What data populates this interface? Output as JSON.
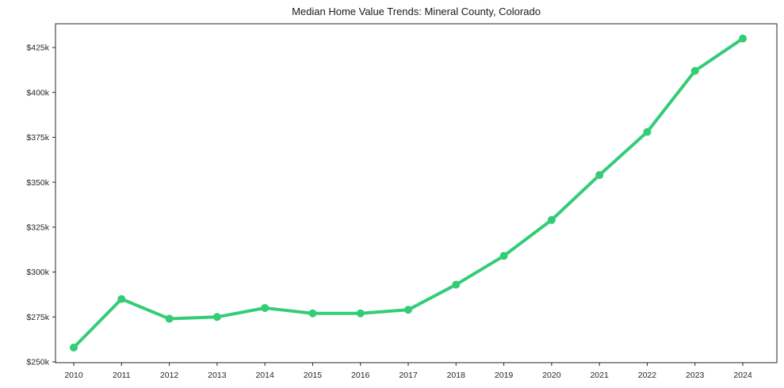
{
  "chart_data": {
    "type": "line",
    "title": "Median Home Value Trends: Mineral County, Colorado",
    "xlabel": "",
    "ylabel": "",
    "x": [
      2010,
      2011,
      2012,
      2013,
      2014,
      2015,
      2016,
      2017,
      2018,
      2019,
      2020,
      2021,
      2022,
      2023,
      2024
    ],
    "x_tick_labels": [
      "2010",
      "2011",
      "2012",
      "2013",
      "2014",
      "2015",
      "2016",
      "2017",
      "2018",
      "2019",
      "2020",
      "2021",
      "2022",
      "2023",
      "2024"
    ],
    "series": [
      {
        "name": "Median home value",
        "values_usd_thousands": [
          258,
          285,
          274,
          275,
          280,
          277,
          277,
          279,
          293,
          309,
          329,
          354,
          378,
          412,
          430
        ]
      }
    ],
    "y_ticks_usd_thousands": [
      250,
      275,
      300,
      325,
      350,
      375,
      400,
      425
    ],
    "y_tick_labels": [
      "$250k",
      "$275k",
      "$300k",
      "$325k",
      "$350k",
      "$375k",
      "$400k",
      "$425k"
    ],
    "ylim_usd_thousands": [
      249.6,
      438.2
    ],
    "grid": false,
    "legend": "none",
    "line_color": "#33cc77",
    "marker": "circle",
    "axis_color": "#262626",
    "text_color": "#262626",
    "background_color": "#ffffff"
  }
}
